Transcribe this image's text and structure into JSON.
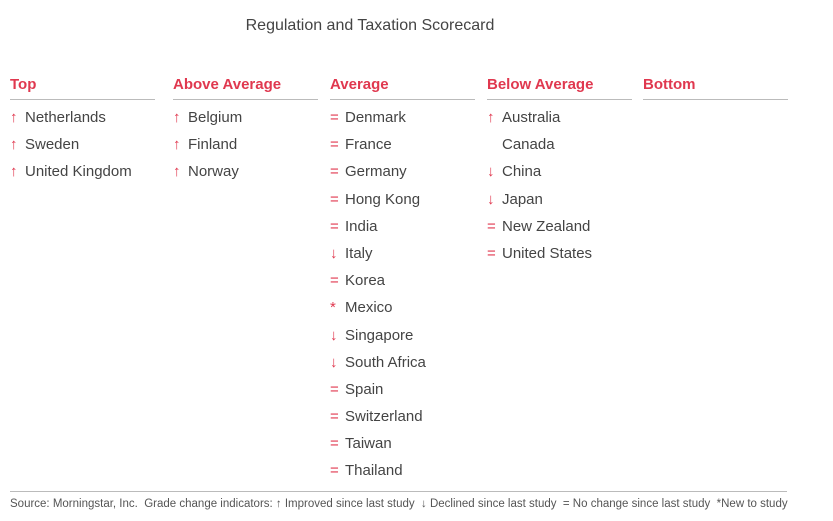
{
  "header": {
    "title": "Regulation and Taxation Scorecard"
  },
  "columns": [
    {
      "heading": "Top",
      "items": [
        {
          "mark": "↑",
          "name": "Netherlands"
        },
        {
          "mark": "↑",
          "name": "Sweden"
        },
        {
          "mark": "↑",
          "name": "United Kingdom"
        }
      ]
    },
    {
      "heading": "Above Average",
      "items": [
        {
          "mark": "↑",
          "name": "Belgium"
        },
        {
          "mark": "↑",
          "name": "Finland"
        },
        {
          "mark": "↑",
          "name": "Norway"
        }
      ]
    },
    {
      "heading": "Average",
      "items": [
        {
          "mark": "=",
          "name": "Denmark"
        },
        {
          "mark": "=",
          "name": "France"
        },
        {
          "mark": "=",
          "name": "Germany"
        },
        {
          "mark": "=",
          "name": "Hong Kong"
        },
        {
          "mark": "=",
          "name": "India"
        },
        {
          "mark": "↓",
          "name": "Italy"
        },
        {
          "mark": "=",
          "name": "Korea"
        },
        {
          "mark": "*",
          "name": "Mexico"
        },
        {
          "mark": "↓",
          "name": "Singapore"
        },
        {
          "mark": "↓",
          "name": "South Africa"
        },
        {
          "mark": "=",
          "name": "Spain"
        },
        {
          "mark": "=",
          "name": "Switzerland"
        },
        {
          "mark": "=",
          "name": "Taiwan"
        },
        {
          "mark": "=",
          "name": "Thailand"
        }
      ]
    },
    {
      "heading": "Below Average",
      "items": [
        {
          "mark": "↑",
          "name": "Australia"
        },
        {
          "name": "Canada"
        },
        {
          "mark": "↓",
          "name": "China"
        },
        {
          "mark": "↓",
          "name": "Japan"
        },
        {
          "mark": "=",
          "name": "New Zealand"
        },
        {
          "mark": "=",
          "name": "United States"
        }
      ]
    },
    {
      "heading": "Bottom",
      "items": []
    }
  ],
  "footer": {
    "text": "Source: Morningstar, Inc.  Grade change indicators: ↑ Improved since last study  ↓ Declined since last study  = No change since last study  *New to study"
  }
}
